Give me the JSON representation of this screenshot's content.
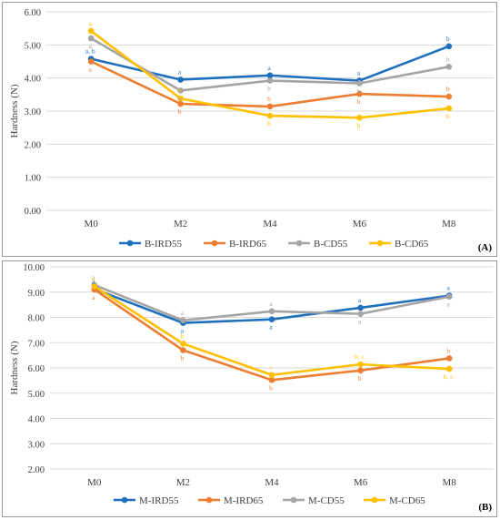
{
  "chart_data": [
    {
      "type": "line",
      "panel_label": "(A)",
      "ylabel": "Hardness (N)",
      "categories": [
        "M0",
        "M2",
        "M4",
        "M6",
        "M8"
      ],
      "ylim": [
        0,
        6
      ],
      "yticks": [
        "0.00",
        "1.00",
        "2.00",
        "3.00",
        "4.00",
        "5.00",
        "6.00"
      ],
      "grid": "horizontal",
      "legend_position": "bottom",
      "series": [
        {
          "name": "B-IRD55",
          "color": "#1f6fbf",
          "values": [
            4.58,
            3.95,
            4.08,
            3.92,
            4.96
          ],
          "labels": [
            "a, b",
            "a",
            "a",
            "a",
            "b"
          ],
          "label_side": [
            "above",
            "above",
            "above",
            "above",
            "above"
          ]
        },
        {
          "name": "B-IRD65",
          "color": "#ed7d31",
          "values": [
            4.5,
            3.22,
            3.14,
            3.52,
            3.44
          ],
          "labels": [
            "a",
            "b",
            "b",
            "b",
            "b"
          ],
          "label_side": [
            "below",
            "below",
            "above",
            "below",
            "above"
          ]
        },
        {
          "name": "B-CD55",
          "color": "#a5a5a5",
          "values": [
            5.2,
            3.62,
            3.92,
            3.84,
            4.34
          ],
          "labels": [
            "a",
            "b",
            "b",
            "b",
            "b"
          ],
          "label_side": [
            "below",
            "below",
            "below",
            "below",
            "above"
          ]
        },
        {
          "name": "B-CD65",
          "color": "#ffc000",
          "values": [
            5.42,
            3.38,
            2.86,
            2.8,
            3.08
          ],
          "labels": [
            "a",
            "b",
            "b",
            "b",
            "b"
          ],
          "label_side": [
            "above",
            "above",
            "below",
            "below",
            "below"
          ]
        }
      ]
    },
    {
      "type": "line",
      "panel_label": "(B)",
      "ylabel": "Hardness (N)",
      "categories": [
        "M0",
        "M2",
        "M4",
        "M6",
        "M8"
      ],
      "ylim": [
        2,
        10
      ],
      "yticks": [
        "2.00",
        "3.00",
        "4.00",
        "5.00",
        "6.00",
        "7.00",
        "8.00",
        "9.00",
        "10.00"
      ],
      "grid": "horizontal",
      "legend_position": "bottom",
      "series": [
        {
          "name": "M-IRD55",
          "color": "#1f6fbf",
          "values": [
            9.12,
            7.78,
            7.92,
            8.38,
            8.86
          ],
          "labels": [
            "a",
            "a",
            "a",
            "a",
            "a"
          ],
          "label_side": [
            "above",
            "below",
            "below",
            "above",
            "above"
          ]
        },
        {
          "name": "M-IRD65",
          "color": "#ed7d31",
          "values": [
            9.1,
            6.7,
            5.52,
            5.9,
            6.38
          ],
          "labels": [
            "a",
            "b",
            "b",
            "b",
            "b"
          ],
          "label_side": [
            "below",
            "below",
            "below",
            "below",
            "above"
          ]
        },
        {
          "name": "M-CD55",
          "color": "#a5a5a5",
          "values": [
            9.28,
            7.88,
            8.24,
            8.14,
            8.82
          ],
          "labels": [
            "a",
            "a",
            "a",
            "a",
            "a"
          ],
          "label_side": [
            "above",
            "above",
            "above",
            "below",
            "below"
          ]
        },
        {
          "name": "M-CD65",
          "color": "#ffc000",
          "values": [
            9.22,
            6.96,
            5.72,
            6.14,
            5.96
          ],
          "labels": [
            "a",
            "b",
            "c",
            "b, c",
            "b, c"
          ],
          "label_side": [
            "above",
            "above",
            "above",
            "above",
            "below"
          ]
        }
      ]
    }
  ]
}
